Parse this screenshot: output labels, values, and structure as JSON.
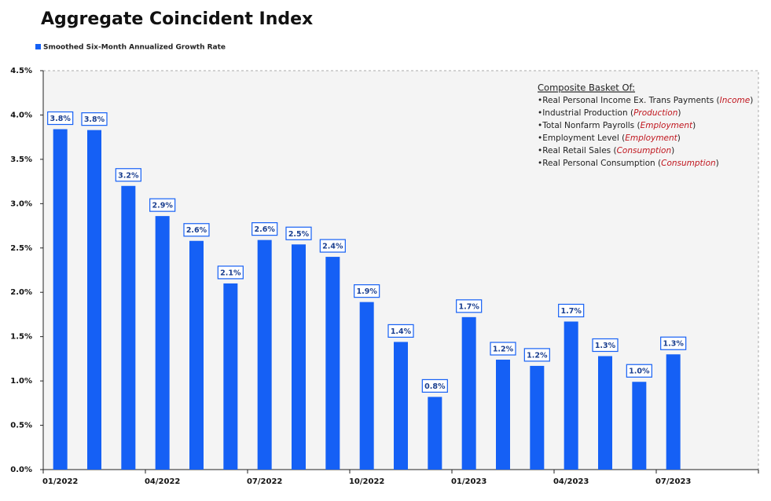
{
  "chart_data": {
    "type": "bar",
    "title": "Aggregate Coincident Index",
    "legend": "Smoothed Six-Month Annualized Growth Rate",
    "color": "#1560f5",
    "categories": [
      "01/2022",
      null,
      null,
      "04/2022",
      null,
      null,
      "07/2022",
      null,
      null,
      "10/2022",
      null,
      null,
      "01/2023",
      null,
      null,
      "04/2023",
      null,
      null,
      "07/2023",
      null,
      null
    ],
    "values": [
      3.84,
      3.83,
      3.2,
      2.86,
      2.58,
      2.1,
      2.59,
      2.54,
      2.4,
      1.89,
      1.44,
      0.82,
      1.72,
      1.24,
      1.17,
      1.67,
      1.28,
      0.99,
      1.3,
      null,
      null
    ],
    "value_labels": [
      "3.8%",
      "3.8%",
      "3.2%",
      "2.9%",
      "2.6%",
      "2.1%",
      "2.6%",
      "2.5%",
      "2.4%",
      "1.9%",
      "1.4%",
      "0.8%",
      "1.7%",
      "1.2%",
      "1.2%",
      "1.7%",
      "1.3%",
      "1.0%",
      "1.3%",
      null,
      null
    ],
    "ylim": [
      0,
      4.5
    ],
    "yticks": [
      {
        "value": 0,
        "label": "0.0%"
      },
      {
        "value": 0.5,
        "label": "0.5%"
      },
      {
        "value": 1,
        "label": "1.0%"
      },
      {
        "value": 1.5,
        "label": "1.5%"
      },
      {
        "value": 2,
        "label": "2.0%"
      },
      {
        "value": 2.5,
        "label": "2.5%"
      },
      {
        "value": 3,
        "label": "3.0%"
      },
      {
        "value": 3.5,
        "label": "3.5%"
      },
      {
        "value": 4,
        "label": "4.0%"
      },
      {
        "value": 4.5,
        "label": "4.5%"
      }
    ],
    "grid": false,
    "annotation": {
      "heading": "Composite Basket Of:",
      "items": [
        {
          "prefix": "•Real Personal Income Ex. Trans Payments (",
          "tag": "Income",
          "suffix": ")"
        },
        {
          "prefix": "•Industrial Production (",
          "tag": "Production",
          "suffix": ")"
        },
        {
          "prefix": "•Total Nonfarm Payrolls (",
          "tag": "Employment",
          "suffix": ")"
        },
        {
          "prefix": "•Employment Level (",
          "tag": "Employment",
          "suffix": ")"
        },
        {
          "prefix": "•Real Retail Sales (",
          "tag": "Consumption",
          "suffix": ")"
        },
        {
          "prefix": "•Real Personal Consumption (",
          "tag": "Consumption",
          "suffix": ")"
        }
      ]
    }
  }
}
